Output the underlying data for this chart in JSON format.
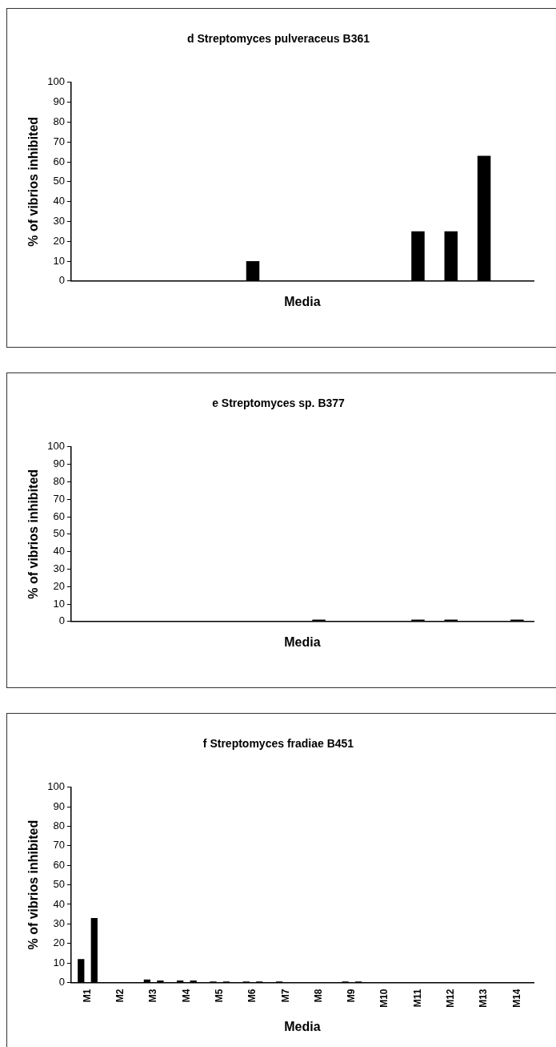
{
  "chart_data": [
    {
      "type": "bar",
      "title": "d Streptomyces pulveraceus B361",
      "xlabel": "Media",
      "ylabel": "% of vibrios inhibited",
      "categories": [
        null,
        null,
        null,
        null,
        null,
        null,
        null,
        null,
        null,
        null,
        null,
        null,
        null,
        null
      ],
      "values": [
        0,
        null,
        null,
        null,
        null,
        10,
        0,
        0,
        0,
        null,
        25,
        25,
        63,
        null
      ],
      "color": "#000000",
      "ylim": [
        0,
        100
      ],
      "yticks": [
        0,
        10,
        20,
        30,
        40,
        50,
        60,
        70,
        80,
        90,
        100
      ],
      "tick_labels": "y"
    },
    {
      "type": "bar",
      "title": "e Streptomyces sp. B377",
      "xlabel": "Media",
      "ylabel": "% of vibrios inhibited",
      "categories": [
        null,
        null,
        null,
        null,
        null,
        null,
        null,
        null,
        null,
        null,
        null,
        null,
        null,
        null
      ],
      "values": [
        0,
        0,
        0,
        0,
        0,
        0,
        null,
        1,
        0,
        0,
        1,
        1,
        0,
        1
      ],
      "color": "#000000",
      "ylim": [
        0,
        100
      ],
      "yticks": [
        0,
        10,
        20,
        30,
        40,
        50,
        60,
        70,
        80,
        90,
        100
      ],
      "tick_labels": "y"
    },
    {
      "type": "bar",
      "title": "f Streptomyces fradiae B451",
      "xlabel": "Media",
      "ylabel": "% of vibrios inhibited",
      "categories": [
        "M1",
        "M2",
        "M3",
        "M4",
        "M5",
        "M6",
        "M7",
        "M8",
        "M9",
        "M10",
        "M11",
        "M12",
        "M13",
        "M14"
      ],
      "series": [
        {
          "color": "#000000",
          "values": [
            12,
            0,
            1.5,
            1,
            0.5,
            0.5,
            0.5,
            null,
            0.5,
            null,
            null,
            null,
            null,
            null
          ]
        },
        {
          "color": "#000000",
          "values": [
            33,
            0,
            1,
            1,
            0.5,
            0.5,
            0,
            null,
            0.5,
            null,
            null,
            null,
            null,
            null
          ]
        }
      ],
      "ylim": [
        0,
        100
      ],
      "yticks": [
        0,
        10,
        20,
        30,
        40,
        50,
        60,
        70,
        80,
        90,
        100
      ]
    }
  ]
}
